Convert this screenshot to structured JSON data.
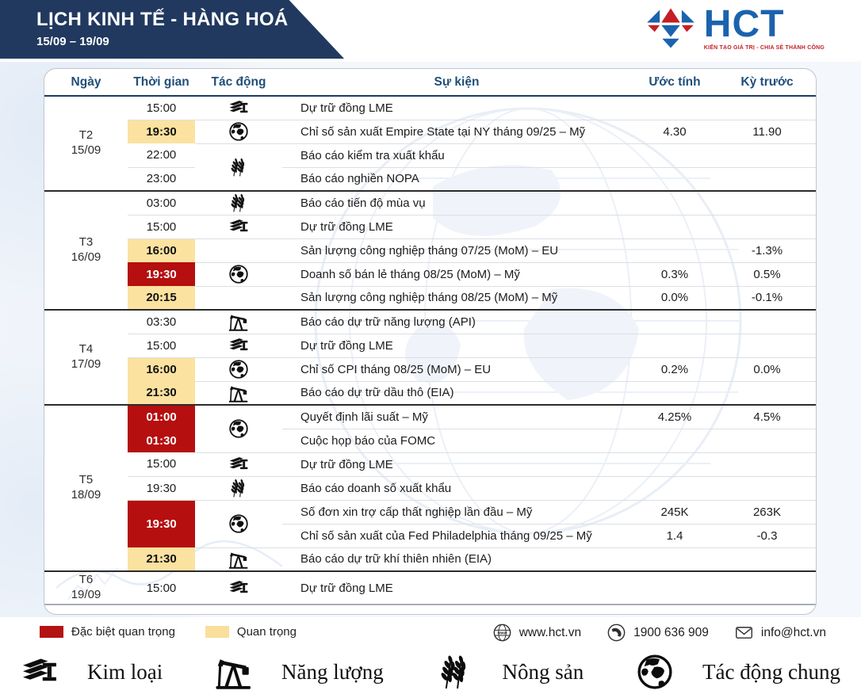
{
  "header": {
    "title": "LỊCH KINH TẾ - HÀNG HOÁ",
    "date_range": "15/09 – 19/09",
    "logo": {
      "name": "HCT",
      "tagline": "KIẾN TẠO GIÁ TRỊ - CHIA SẺ THÀNH CÔNG"
    }
  },
  "table": {
    "columns": [
      "Ngày",
      "Thời gian",
      "Tác động",
      "Sự kiện",
      "Ước tính",
      "Kỳ trước"
    ],
    "groups": [
      {
        "day": "T2",
        "date": "15/09",
        "rows": [
          {
            "time": "15:00",
            "icon": "metal-icon",
            "event": "Dự trữ đồng LME",
            "estimate": "",
            "previous": ""
          },
          {
            "time": "19:30",
            "style": "yellow",
            "icon": "globe-icon",
            "event": "Chỉ số sản xuất Empire State tại NY tháng 09/25 – Mỹ",
            "estimate": "4.30",
            "previous": "11.90"
          },
          {
            "time": "22:00",
            "icon": "wheat-icon",
            "icon_rowspan": 2,
            "event": "Báo cáo kiểm tra xuất khẩu",
            "estimate": "",
            "previous": ""
          },
          {
            "time": "23:00",
            "icon_skip": true,
            "event": "Báo cáo nghiền NOPA",
            "estimate": "",
            "previous": ""
          }
        ]
      },
      {
        "day": "T3",
        "date": "16/09",
        "rows": [
          {
            "time": "03:00",
            "icon": "wheat-icon",
            "event": "Báo cáo tiến độ mùa vụ",
            "estimate": "",
            "previous": ""
          },
          {
            "time": "15:00",
            "icon": "metal-icon",
            "event": "Dự trữ đồng LME",
            "estimate": "",
            "previous": ""
          },
          {
            "time": "16:00",
            "style": "yellow",
            "icon": null,
            "event": "Sản lượng công nghiệp tháng 07/25 (MoM) – EU",
            "estimate": "",
            "previous": "-1.3%"
          },
          {
            "time": "19:30",
            "style": "red",
            "icon": "globe-icon",
            "event": "Doanh số bán lẻ tháng 08/25 (MoM) – Mỹ",
            "estimate": "0.3%",
            "previous": "0.5%"
          },
          {
            "time": "20:15",
            "style": "yellow",
            "icon": null,
            "event": "Sản lượng công nghiệp tháng 08/25 (MoM) – Mỹ",
            "estimate": "0.0%",
            "previous": "-0.1%"
          }
        ]
      },
      {
        "day": "T4",
        "date": "17/09",
        "rows": [
          {
            "time": "03:30",
            "icon": "oil-pump-icon",
            "event": "Báo cáo dự trữ năng lượng (API)",
            "estimate": "",
            "previous": ""
          },
          {
            "time": "15:00",
            "icon": "metal-icon",
            "event": "Dự trữ đồng LME",
            "estimate": "",
            "previous": ""
          },
          {
            "time": "16:00",
            "style": "yellow",
            "icon": "globe-icon",
            "event": "Chỉ số CPI tháng 08/25 (MoM) – EU",
            "estimate": "0.2%",
            "previous": "0.0%"
          },
          {
            "time": "21:30",
            "style": "yellow",
            "icon": "oil-pump-icon",
            "event": "Báo cáo dự trữ dầu thô (EIA)",
            "estimate": "",
            "previous": ""
          }
        ]
      },
      {
        "day": "T5",
        "date": "18/09",
        "rows": [
          {
            "time": "01:00",
            "style": "red",
            "icon": "globe-icon",
            "icon_rowspan": 2,
            "event": "Quyết định lãi suất – Mỹ",
            "estimate": "4.25%",
            "previous": "4.5%"
          },
          {
            "time": "01:30",
            "style": "red",
            "icon_skip": true,
            "event": "Cuộc họp báo của FOMC",
            "estimate": "",
            "previous": ""
          },
          {
            "time": "15:00",
            "icon": "metal-icon",
            "event": "Dự trữ đồng LME",
            "estimate": "",
            "previous": ""
          },
          {
            "time": "19:30",
            "icon": "wheat-icon",
            "event": "Báo cáo doanh số xuất khẩu",
            "estimate": "",
            "previous": ""
          },
          {
            "time": "19:30",
            "style": "red",
            "time_rowspan": 2,
            "icon": "globe-icon",
            "icon_rowspan": 2,
            "event": "Số đơn xin trợ cấp thất nghiệp lần đầu – Mỹ",
            "estimate": "245K",
            "previous": "263K"
          },
          {
            "time_skip": true,
            "icon_skip": true,
            "event": "Chỉ số sản xuất của Fed Philadelphia tháng 09/25 – Mỹ",
            "estimate": "1.4",
            "previous": "-0.3"
          },
          {
            "time": "21:30",
            "style": "yellow",
            "icon": "oil-pump-icon",
            "event": "Báo cáo dự trữ khí thiên nhiên (EIA)",
            "estimate": "",
            "previous": ""
          }
        ]
      },
      {
        "day": "T6",
        "date": "19/09",
        "rows": [
          {
            "time": "15:00",
            "icon": "metal-icon",
            "event": "Dự trữ đồng LME",
            "estimate": "",
            "previous": ""
          }
        ]
      }
    ]
  },
  "legend": {
    "items": [
      {
        "label": "Đặc biệt quan trọng",
        "color": "#b31312"
      },
      {
        "label": "Quan trọng",
        "color": "#f9df9b"
      }
    ]
  },
  "contacts": [
    {
      "icon": "www-globe-icon",
      "text": "www.hct.vn"
    },
    {
      "icon": "phone-icon",
      "text": "1900 636 909"
    },
    {
      "icon": "mail-icon",
      "text": "info@hct.vn"
    }
  ],
  "categories": [
    {
      "icon": "metal-icon",
      "label": "Kim loại"
    },
    {
      "icon": "oil-pump-icon",
      "label": "Năng lượng"
    },
    {
      "icon": "wheat-icon",
      "label": "Nông sản"
    },
    {
      "icon": "globe-icon",
      "label": "Tác động chung"
    }
  ],
  "colors": {
    "banner_navy": "#21395f",
    "header_text": "#1f4e79",
    "red_cell": "#b50f0f",
    "yellow_cell": "#fbe2a0",
    "logo_blue": "#1b63ae",
    "logo_red": "#c51e25"
  }
}
